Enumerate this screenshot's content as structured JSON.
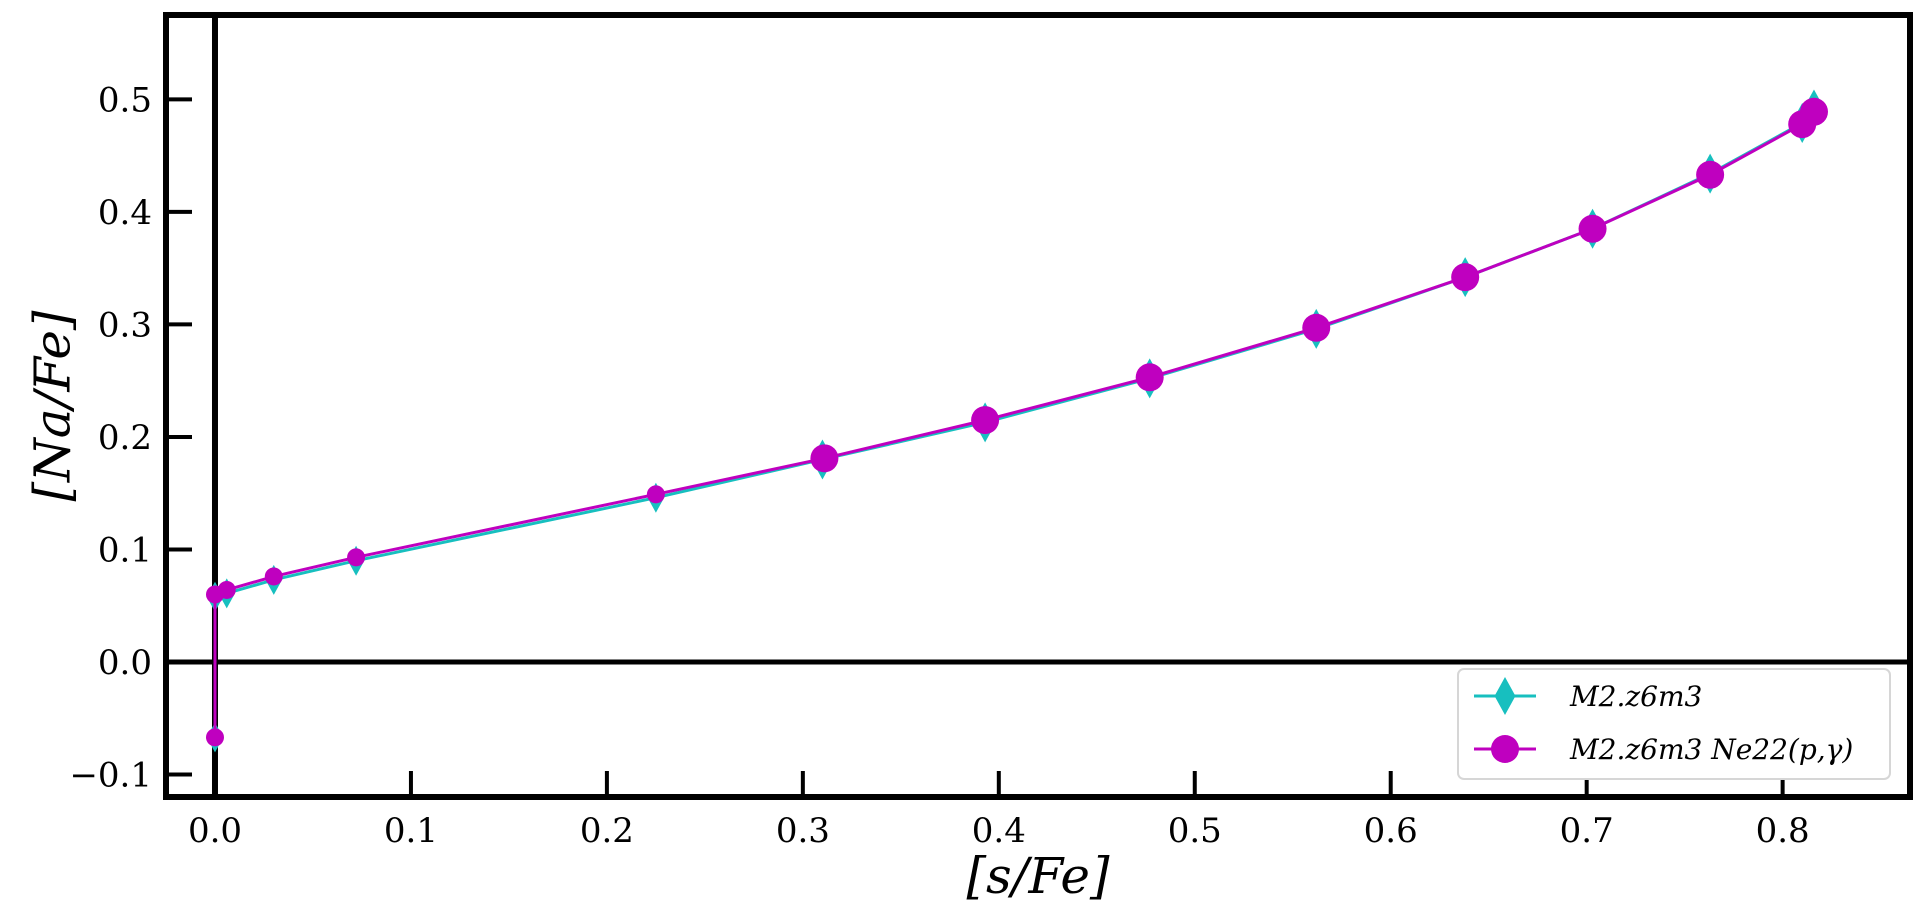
{
  "chart_data": {
    "type": "line",
    "xlabel": "[s/Fe]",
    "ylabel": "[Na/Fe]",
    "xlim": [
      -0.025,
      0.865
    ],
    "ylim": [
      -0.12,
      0.575
    ],
    "xticks": [
      0.0,
      0.1,
      0.2,
      0.3,
      0.4,
      0.5,
      0.6,
      0.7,
      0.8
    ],
    "xtick_labels": [
      "0.0",
      "0.1",
      "0.2",
      "0.3",
      "0.4",
      "0.5",
      "0.6",
      "0.7",
      "0.8"
    ],
    "yticks": [
      -0.1,
      0.0,
      0.1,
      0.2,
      0.3,
      0.4,
      0.5
    ],
    "ytick_labels": [
      "−0.1",
      "0.0",
      "0.1",
      "0.2",
      "0.3",
      "0.4",
      "0.5"
    ],
    "reference_lines": {
      "x": 0.0,
      "y": 0.0
    },
    "grid": false,
    "legend_position": "bottom-right",
    "series": [
      {
        "name": "M2.z6m3",
        "color": "#17bfbf",
        "marker": "diamond",
        "x": [
          0.0,
          0.0,
          0.006,
          0.03,
          0.072,
          0.225,
          0.31,
          0.393,
          0.477,
          0.562,
          0.638,
          0.703,
          0.763,
          0.81,
          0.816
        ],
        "y": [
          -0.067,
          0.058,
          0.061,
          0.073,
          0.09,
          0.146,
          0.18,
          0.213,
          0.252,
          0.296,
          0.342,
          0.385,
          0.434,
          0.479,
          0.491
        ]
      },
      {
        "name": "M2.z6m3 Ne22(p,γ)",
        "color": "#bf00bf",
        "marker": "circle",
        "x": [
          0.0,
          0.0,
          0.006,
          0.03,
          0.072,
          0.225,
          0.311,
          0.393,
          0.477,
          0.562,
          0.638,
          0.703,
          0.763,
          0.81,
          0.816
        ],
        "y": [
          -0.067,
          0.06,
          0.064,
          0.076,
          0.093,
          0.149,
          0.181,
          0.215,
          0.253,
          0.297,
          0.342,
          0.385,
          0.433,
          0.478,
          0.489
        ]
      }
    ]
  }
}
